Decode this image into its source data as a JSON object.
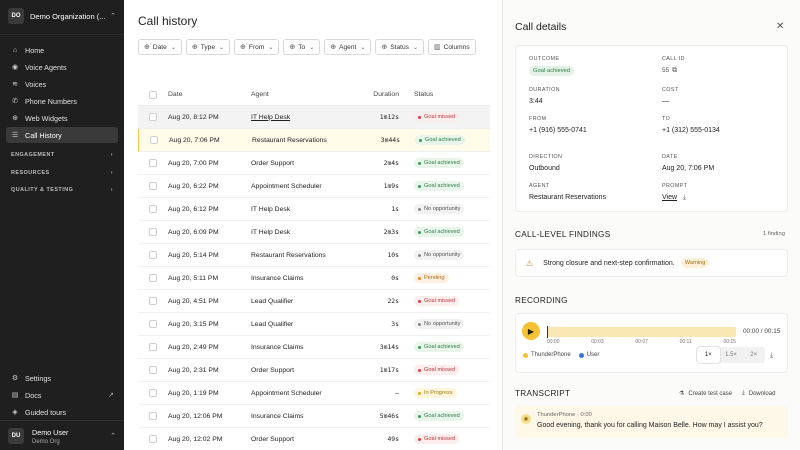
{
  "sidebar": {
    "org_initials": "DO",
    "org_name": "Demo Organization (...",
    "nav": [
      {
        "label": "Home",
        "icon": "home-icon"
      },
      {
        "label": "Voice Agents",
        "icon": "voice-agents-icon"
      },
      {
        "label": "Voices",
        "icon": "voices-icon"
      },
      {
        "label": "Phone Numbers",
        "icon": "phone-icon"
      },
      {
        "label": "Web Widgets",
        "icon": "widget-icon"
      },
      {
        "label": "Call History",
        "icon": "history-icon"
      }
    ],
    "sections": [
      "ENGAGEMENT",
      "RESOURCES",
      "QUALITY & TESTING"
    ],
    "bottom_nav": [
      {
        "label": "Settings",
        "icon": "settings-icon"
      },
      {
        "label": "Docs",
        "icon": "docs-icon"
      },
      {
        "label": "Guided tours",
        "icon": "tours-icon"
      }
    ],
    "user_initials": "DU",
    "user_name": "Demo User",
    "user_org": "Demo Org"
  },
  "main": {
    "title": "Call history",
    "filters": [
      "Date",
      "Type",
      "From",
      "To",
      "Agent",
      "Status"
    ],
    "columns_button": "Columns",
    "headers": {
      "date": "Date",
      "agent": "Agent",
      "duration": "Duration",
      "status": "Status"
    },
    "rows": [
      {
        "date": "Aug 20, 8:12 PM",
        "agent": "IT Help Desk",
        "duration": "1m12s",
        "status": "Goal missed"
      },
      {
        "date": "Aug 20, 7:06 PM",
        "agent": "Restaurant Reservations",
        "duration": "3m44s",
        "status": "Goal achieved"
      },
      {
        "date": "Aug 20, 7:00 PM",
        "agent": "Order Support",
        "duration": "2m4s",
        "status": "Goal achieved"
      },
      {
        "date": "Aug 20, 6:22 PM",
        "agent": "Appointment Scheduler",
        "duration": "1m9s",
        "status": "Goal achieved"
      },
      {
        "date": "Aug 20, 6:12 PM",
        "agent": "IT Help Desk",
        "duration": "1s",
        "status": "No opportunity"
      },
      {
        "date": "Aug 20, 6:09 PM",
        "agent": "IT Help Desk",
        "duration": "2m3s",
        "status": "Goal achieved"
      },
      {
        "date": "Aug 20, 5:14 PM",
        "agent": "Restaurant Reservations",
        "duration": "10s",
        "status": "No opportunity"
      },
      {
        "date": "Aug 20, 5:11 PM",
        "agent": "Insurance Claims",
        "duration": "0s",
        "status": "Pending"
      },
      {
        "date": "Aug 20, 4:51 PM",
        "agent": "Lead Qualifier",
        "duration": "22s",
        "status": "Goal missed"
      },
      {
        "date": "Aug 20, 3:15 PM",
        "agent": "Lead Qualifier",
        "duration": "3s",
        "status": "No opportunity"
      },
      {
        "date": "Aug 20, 2:49 PM",
        "agent": "Insurance Claims",
        "duration": "3m14s",
        "status": "Goal achieved"
      },
      {
        "date": "Aug 20, 2:31 PM",
        "agent": "Order Support",
        "duration": "1m17s",
        "status": "Goal missed"
      },
      {
        "date": "Aug 20, 1:19 PM",
        "agent": "Appointment Scheduler",
        "duration": "–",
        "status": "In Progress"
      },
      {
        "date": "Aug 20, 12:06 PM",
        "agent": "Insurance Claims",
        "duration": "5m46s",
        "status": "Goal achieved"
      },
      {
        "date": "Aug 20, 12:02 PM",
        "agent": "Order Support",
        "duration": "49s",
        "status": "Goal missed"
      }
    ]
  },
  "details": {
    "title": "Call details",
    "outcome_label": "OUTCOME",
    "outcome_value": "Goal achieved",
    "call_id_label": "CALL ID",
    "call_id_value": "55",
    "duration_label": "DURATION",
    "duration_value": "3:44",
    "cost_label": "COST",
    "cost_value": "—",
    "from_label": "FROM",
    "from_value": "+1 (916) 555-0741",
    "to_label": "TO",
    "to_value": "+1 (312) 555-0134",
    "direction_label": "DIRECTION",
    "direction_value": "Outbound",
    "date_label": "DATE",
    "date_value": "Aug 20, 7:06 PM",
    "agent_label": "AGENT",
    "agent_value": "Restaurant Reservations",
    "prompt_label": "PROMPT",
    "prompt_view": "View",
    "findings_title": "CALL-LEVEL FINDINGS",
    "findings_count": "1 finding",
    "finding_text": "Strong closure and next-step confirmation.",
    "finding_badge": "Warning",
    "recording_title": "RECORDING",
    "recording_time": "00:00 / 00:15",
    "recording_ticks": [
      "00:00",
      "00:03",
      "00:07",
      "00:11",
      "00:15"
    ],
    "recording_progress": 0,
    "legend_agent": "ThunderPhone",
    "legend_user": "User",
    "speeds": [
      "1×",
      "1.5×",
      "2×"
    ],
    "transcript_title": "TRANSCRIPT",
    "create_test_case": "Create test case",
    "download": "Download",
    "message_speaker": "ThunderPhone · 0:00",
    "message_text": "Good evening, thank you for calling Maison Belle. How may I assist you?"
  },
  "colors": {
    "accent": "#f5c234",
    "sidebar_bg": "#1f1f1f",
    "agent_dot": "#f5c234",
    "user_dot": "#3b6fe0"
  }
}
